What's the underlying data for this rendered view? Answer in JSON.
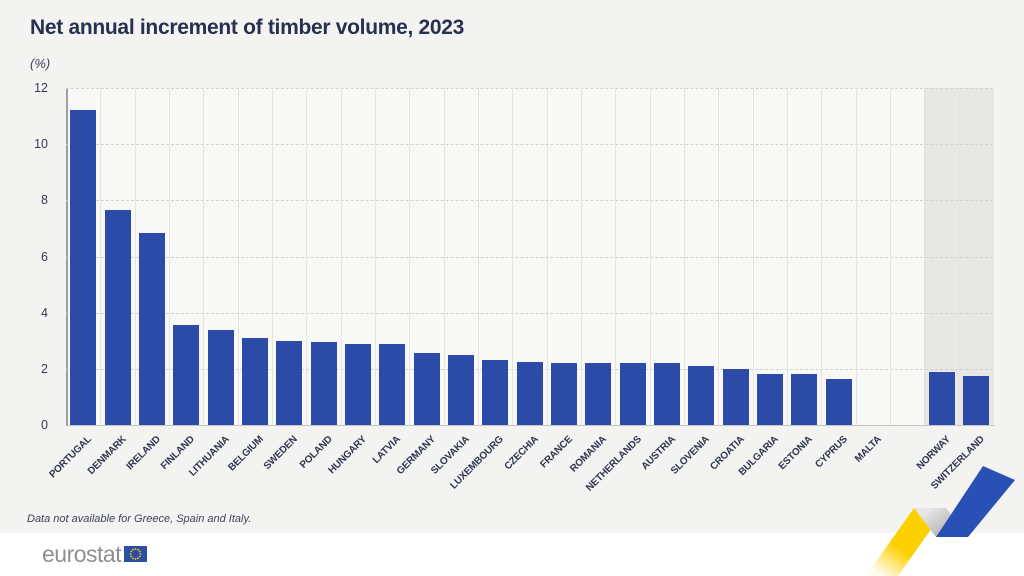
{
  "header": {
    "title": "Net annual increment of timber volume, 2023",
    "unit": "(%)"
  },
  "chart_data": {
    "type": "bar",
    "title": "Net annual increment of timber volume, 2023",
    "ylabel": "(%)",
    "ylim": [
      0,
      12
    ],
    "yticks": [
      0,
      2,
      4,
      6,
      8,
      10,
      12
    ],
    "grid": "horizontal-dashed",
    "legend": "none",
    "bar_color": "#2c4ba8",
    "highlight_background": "#e7e7e5",
    "categories": [
      "PORTUGAL",
      "DENMARK",
      "IRELAND",
      "FINLAND",
      "LITHUANIA",
      "BELGIUM",
      "SWEDEN",
      "POLAND",
      "HUNGARY",
      "LATVIA",
      "GERMANY",
      "SLOVAKIA",
      "LUXEMBOURG",
      "CZECHIA",
      "FRANCE",
      "ROMANIA",
      "NETHERLANDS",
      "AUSTRIA",
      "SLOVENIA",
      "CROATIA",
      "BULGARIA",
      "ESTONIA",
      "CYPRUS",
      "MALTA",
      "",
      "NORWAY",
      "SWITZERLAND"
    ],
    "values": [
      11.2,
      7.65,
      6.85,
      3.55,
      3.4,
      3.1,
      3.0,
      2.95,
      2.9,
      2.9,
      2.55,
      2.5,
      2.3,
      2.25,
      2.2,
      2.2,
      2.2,
      2.2,
      2.1,
      2.0,
      1.8,
      1.8,
      1.65,
      0,
      null,
      1.9,
      1.75
    ],
    "highlighted_categories": [
      "NORWAY",
      "SWITZERLAND"
    ],
    "note": "Data not available for Greece, Spain and Italy."
  },
  "footer": {
    "logo_text": "eurostat"
  },
  "colors": {
    "ribbon_yellow": "#fdd000",
    "ribbon_blue": "#2950b5",
    "ribbon_gray": "#c9c9c9",
    "flag_blue": "#2a4fa5",
    "flag_star_yellow": "#ffcc00"
  }
}
